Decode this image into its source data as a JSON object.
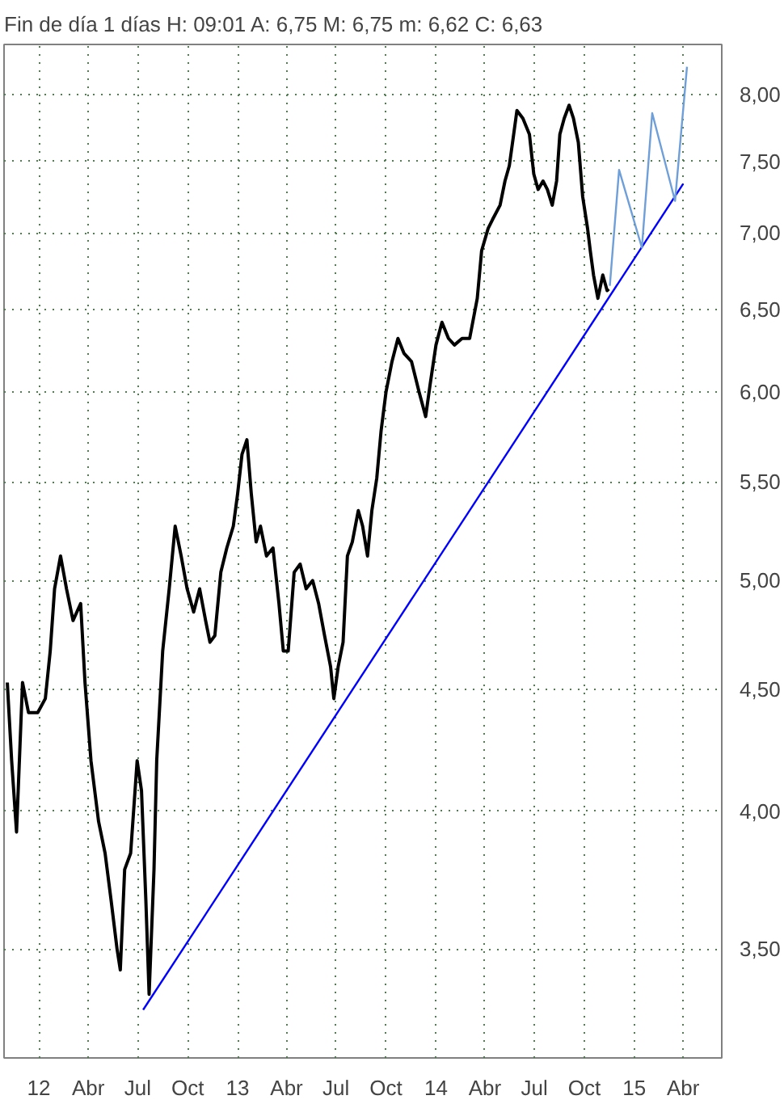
{
  "chart_data": {
    "type": "line",
    "title": "Fin de día 1 días H: 09:01 A: 6,75 M: 6,75 m: 6,62 C: 6,63",
    "log": "y",
    "grid": true,
    "xlim": [
      "2011-10-29",
      "2015-06-11"
    ],
    "ylim": [
      3.15,
      8.4
    ],
    "xticks": [
      {
        "value": "2012-01-01",
        "label": "12"
      },
      {
        "value": "2012-04-01",
        "label": "Abr"
      },
      {
        "value": "2012-07-01",
        "label": "Jul"
      },
      {
        "value": "2012-10-01",
        "label": "Oct"
      },
      {
        "value": "2013-01-01",
        "label": "13"
      },
      {
        "value": "2013-04-01",
        "label": "Abr"
      },
      {
        "value": "2013-07-01",
        "label": "Jul"
      },
      {
        "value": "2013-10-01",
        "label": "Oct"
      },
      {
        "value": "2014-01-01",
        "label": "14"
      },
      {
        "value": "2014-04-01",
        "label": "Abr"
      },
      {
        "value": "2014-07-01",
        "label": "Jul"
      },
      {
        "value": "2014-10-01",
        "label": "Oct"
      },
      {
        "value": "2015-01-01",
        "label": "15"
      },
      {
        "value": "2015-04-01",
        "label": "Abr"
      }
    ],
    "yticks": [
      {
        "value": 3.5,
        "label": "3,50"
      },
      {
        "value": 4,
        "label": "4,00"
      },
      {
        "value": 4.5,
        "label": "4,50"
      },
      {
        "value": 5,
        "label": "5,00"
      },
      {
        "value": 5.5,
        "label": "5,50"
      },
      {
        "value": 6,
        "label": "6,00"
      },
      {
        "value": 6.5,
        "label": "6,50"
      },
      {
        "value": 7,
        "label": "7,00"
      },
      {
        "value": 7.5,
        "label": "7,50"
      },
      {
        "value": 8,
        "label": "8,00"
      }
    ],
    "series": [
      {
        "color": "#000000",
        "x": [
          "2011-11-04",
          "2011-11-12",
          "2011-11-21",
          "2011-12-02",
          "2011-12-13",
          "2011-12-30",
          "2012-01-13",
          "2012-01-22",
          "2012-01-30",
          "2012-02-10",
          "2012-02-21",
          "2012-03-04",
          "2012-03-18",
          "2012-03-26",
          "2012-04-06",
          "2012-04-20",
          "2012-05-02",
          "2012-05-13",
          "2012-05-24",
          "2012-05-30",
          "2012-06-07",
          "2012-06-18",
          "2012-06-30",
          "2012-07-08",
          "2012-07-16",
          "2012-07-22",
          "2012-07-31",
          "2012-08-05",
          "2012-08-16",
          "2012-08-28",
          "2012-09-08",
          "2012-09-19",
          "2012-09-30",
          "2012-10-12",
          "2012-10-23",
          "2012-11-03",
          "2012-11-11",
          "2012-11-20",
          "2012-12-01",
          "2012-12-12",
          "2012-12-24",
          "2013-01-01",
          "2013-01-09",
          "2013-01-18",
          "2013-01-26",
          "2013-02-04",
          "2013-02-12",
          "2013-02-23",
          "2013-03-07",
          "2013-03-18",
          "2013-03-26",
          "2013-04-04",
          "2013-04-15",
          "2013-04-26",
          "2013-05-07",
          "2013-05-19",
          "2013-05-30",
          "2013-06-10",
          "2013-06-21",
          "2013-06-27",
          "2013-07-05",
          "2013-07-14",
          "2013-07-22",
          "2013-07-31",
          "2013-08-11",
          "2013-08-19",
          "2013-08-28",
          "2013-09-05",
          "2013-09-14",
          "2013-09-22",
          "2013-10-01",
          "2013-10-12",
          "2013-10-23",
          "2013-11-03",
          "2013-11-17",
          "2013-12-01",
          "2013-12-13",
          "2013-12-21",
          "2014-01-01",
          "2014-01-12",
          "2014-01-24",
          "2014-02-04",
          "2014-02-18",
          "2014-03-04",
          "2014-03-18",
          "2014-03-26",
          "2014-04-07",
          "2014-04-15",
          "2014-04-29",
          "2014-05-08",
          "2014-05-16",
          "2014-05-24",
          "2014-05-30",
          "2014-06-10",
          "2014-06-22",
          "2014-06-30",
          "2014-07-08",
          "2014-07-17",
          "2014-07-25",
          "2014-08-03",
          "2014-08-11",
          "2014-08-17",
          "2014-08-25",
          "2014-09-03",
          "2014-09-11",
          "2014-09-20",
          "2014-09-28",
          "2014-10-07",
          "2014-10-12",
          "2014-10-18",
          "2014-10-26",
          "2014-11-04",
          "2014-11-12",
          "2014-11-15"
        ],
        "values": [
          4.53,
          4.2,
          3.92,
          4.53,
          4.4,
          4.4,
          4.46,
          4.67,
          4.96,
          5.12,
          4.96,
          4.81,
          4.89,
          4.53,
          4.2,
          3.96,
          3.84,
          3.67,
          3.5,
          3.43,
          3.78,
          3.84,
          4.2,
          4.08,
          3.67,
          3.35,
          3.78,
          4.2,
          4.67,
          4.96,
          5.27,
          5.12,
          4.96,
          4.85,
          4.96,
          4.81,
          4.71,
          4.74,
          5.04,
          5.16,
          5.27,
          5.44,
          5.65,
          5.73,
          5.44,
          5.19,
          5.27,
          5.12,
          5.16,
          4.89,
          4.67,
          4.67,
          5.04,
          5.08,
          4.96,
          5.0,
          4.89,
          4.74,
          4.6,
          4.46,
          4.6,
          4.71,
          5.12,
          5.19,
          5.35,
          5.27,
          5.12,
          5.35,
          5.52,
          5.78,
          6.0,
          6.18,
          6.32,
          6.23,
          6.18,
          6.0,
          5.86,
          6.04,
          6.28,
          6.42,
          6.32,
          6.28,
          6.32,
          6.32,
          6.57,
          6.88,
          7.03,
          7.09,
          7.19,
          7.36,
          7.47,
          7.7,
          7.88,
          7.82,
          7.7,
          7.41,
          7.3,
          7.36,
          7.3,
          7.19,
          7.36,
          7.7,
          7.82,
          7.92,
          7.82,
          7.64,
          7.25,
          7.03,
          6.88,
          6.72,
          6.57,
          6.72,
          6.62,
          6.63
        ]
      },
      {
        "color": "#0000ff",
        "x": [
          "2012-07-11",
          "2015-04-01"
        ],
        "values": [
          3.3,
          7.34
        ]
      },
      {
        "color": "#6f9fd8",
        "x": [
          "2014-11-17",
          "2014-12-04",
          "2015-01-15",
          "2015-02-03",
          "2015-03-17",
          "2015-04-08"
        ],
        "values": [
          6.65,
          7.44,
          6.9,
          7.86,
          7.22,
          8.22
        ]
      }
    ]
  }
}
